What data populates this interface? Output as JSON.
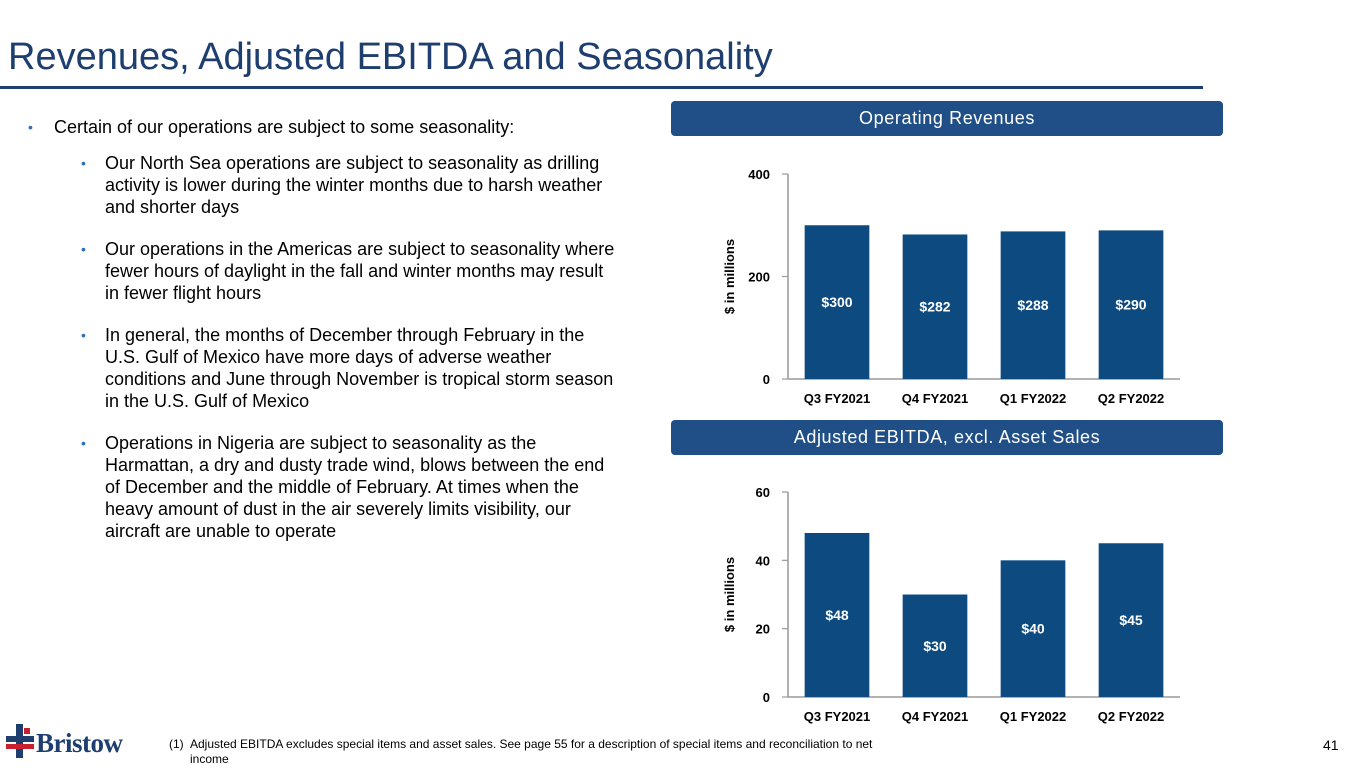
{
  "page": {
    "title": "Revenues, Adjusted EBITDA and Seasonality",
    "page_number": "41"
  },
  "bullets": {
    "main": "Certain of our operations are subject to some seasonality:",
    "sub": [
      "Our North Sea operations are subject to seasonality as drilling activity is lower during the winter months due to harsh weather and shorter days",
      "Our operations in the Americas are subject to seasonality where fewer hours of daylight in the fall and winter months may result in fewer flight hours",
      "In general, the months of December through February in the U.S. Gulf of Mexico have more days of adverse weather conditions and June through November is tropical storm season in the U.S. Gulf of Mexico",
      "Operations in Nigeria are subject to seasonality as the Harmattan, a dry and dusty trade wind, blows between the end of December and the middle of February. At times when the heavy amount of dust in the air severely limits visibility, our aircraft are unable to operate"
    ]
  },
  "footnote": {
    "marker": "(1)",
    "text": "Adjusted EBITDA excludes special items and asset sales. See page 55 for a description of special items and reconciliation to net income"
  },
  "logo": {
    "name": "Bristow",
    "icon": "bristow-cross-logo-icon"
  },
  "colors": {
    "title": "#1d3e6e",
    "bar": "#0d4a80",
    "header": "#1f4f86",
    "bullet": "#2e6fb6"
  },
  "chart_data": [
    {
      "type": "bar",
      "title": "Operating Revenues",
      "categories": [
        "Q3 FY2021",
        "Q4 FY2021",
        "Q1 FY2022",
        "Q2 FY2022"
      ],
      "values": [
        300,
        282,
        288,
        290
      ],
      "data_labels": [
        "$300",
        "$282",
        "$288",
        "$290"
      ],
      "ylabel": "$ in millions",
      "ylim": [
        0,
        400
      ],
      "yticks": [
        0,
        200,
        400
      ],
      "grid": false,
      "legend": "none"
    },
    {
      "type": "bar",
      "title": "Adjusted EBITDA, excl. Asset Sales",
      "categories": [
        "Q3 FY2021",
        "Q4 FY2021",
        "Q1 FY2022",
        "Q2 FY2022"
      ],
      "values": [
        48,
        30,
        40,
        45
      ],
      "data_labels": [
        "$48",
        "$30",
        "$40",
        "$45"
      ],
      "ylabel": "$ in millions",
      "ylim": [
        0,
        60
      ],
      "yticks": [
        0,
        20,
        40,
        60
      ],
      "grid": false,
      "legend": "none"
    }
  ]
}
